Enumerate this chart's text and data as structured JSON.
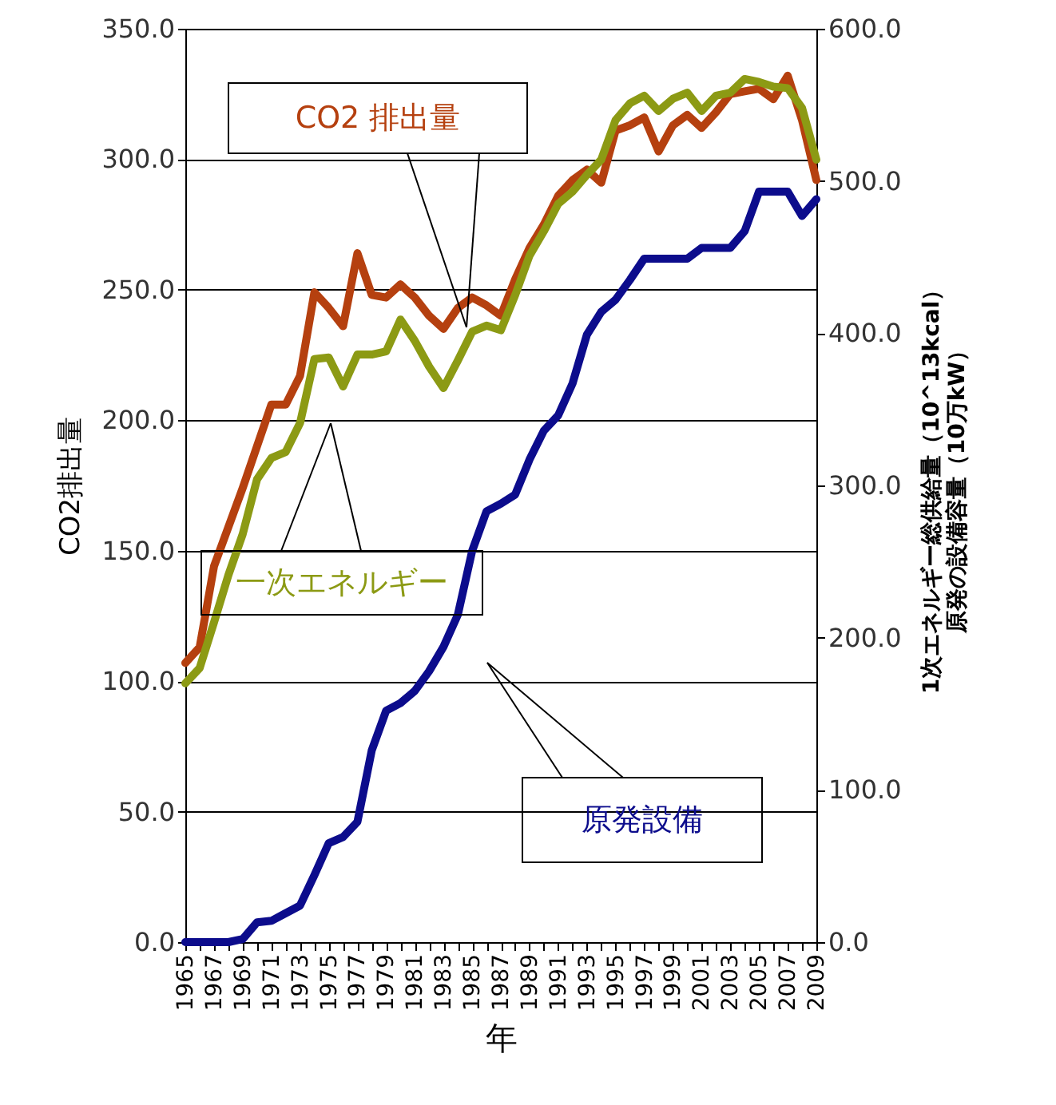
{
  "chart_data": {
    "type": "line",
    "xlabel": "年",
    "ylabel": "CO2排出量",
    "y2label": [
      "1次エネルギー総供給量（10^13kcal）",
      "原発の設備容量（10万kW）"
    ],
    "x": [
      1965,
      1966,
      1967,
      1968,
      1969,
      1970,
      1971,
      1972,
      1973,
      1974,
      1975,
      1976,
      1977,
      1978,
      1979,
      1980,
      1981,
      1982,
      1983,
      1984,
      1985,
      1986,
      1987,
      1988,
      1989,
      1990,
      1991,
      1992,
      1993,
      1994,
      1995,
      1996,
      1997,
      1998,
      1999,
      2000,
      2001,
      2002,
      2003,
      2004,
      2005,
      2006,
      2007,
      2008,
      2009
    ],
    "series": [
      {
        "name": "CO2 排出量",
        "color": "#b5400f",
        "values": [
          107,
          113,
          144,
          159,
          174,
          190,
          206,
          206,
          217,
          249,
          243,
          236,
          264,
          248,
          247,
          252,
          247,
          240,
          235,
          243,
          247,
          244,
          240,
          254,
          266,
          275,
          286,
          292,
          296,
          291,
          311,
          313,
          316,
          303,
          313,
          317,
          312,
          318,
          325,
          326,
          327,
          323,
          332,
          315,
          292
        ]
      },
      {
        "name": "一次エネルギー",
        "color": "#8c9a14",
        "axis": "y2",
        "values": [
          170,
          180,
          210,
          241,
          268,
          304,
          318,
          322,
          341,
          383,
          384,
          365,
          386,
          386,
          388,
          409,
          395,
          378,
          364,
          382,
          401,
          405,
          402,
          425,
          451,
          467,
          485,
          493,
          504,
          514,
          540,
          551,
          556,
          546,
          554,
          558,
          546,
          556,
          558,
          567,
          565,
          562,
          561,
          548,
          514
        ]
      },
      {
        "name": "原発設備",
        "color": "#0c0c8c",
        "axis": "y2",
        "values": [
          0,
          0,
          0,
          0,
          2,
          13,
          14,
          19,
          24,
          44,
          65,
          69,
          79,
          126,
          152,
          157,
          165,
          178,
          194,
          215,
          257,
          283,
          288,
          294,
          317,
          336,
          346,
          367,
          399,
          414,
          422,
          435,
          449,
          449,
          449,
          449,
          456,
          456,
          456,
          467,
          493,
          493,
          493,
          477,
          488
        ]
      }
    ],
    "xlim": [
      1965,
      2009
    ],
    "xticks": [
      1965,
      {
        "value": 1966,
        "label": null
      },
      1967,
      {
        "value": 1968,
        "label": null
      },
      1969,
      {
        "value": 1970,
        "label": null
      },
      1971,
      {
        "value": 1972,
        "label": null
      },
      1973,
      {
        "value": 1974,
        "label": null
      },
      1975,
      {
        "value": 1976,
        "label": null
      },
      1977,
      {
        "value": 1978,
        "label": null
      },
      1979,
      {
        "value": 1980,
        "label": null
      },
      1981,
      {
        "value": 1982,
        "label": null
      },
      1983,
      {
        "value": 1984,
        "label": null
      },
      1985,
      {
        "value": 1986,
        "label": null
      },
      1987,
      {
        "value": 1988,
        "label": null
      },
      1989,
      {
        "value": 1990,
        "label": null
      },
      1991,
      {
        "value": 1992,
        "label": null
      },
      1993,
      {
        "value": 1994,
        "label": null
      },
      1995,
      {
        "value": 1996,
        "label": null
      },
      1997,
      {
        "value": 1998,
        "label": null
      },
      1999,
      {
        "value": 2000,
        "label": null
      },
      2001,
      {
        "value": 2002,
        "label": null
      },
      2003,
      {
        "value": 2004,
        "label": null
      },
      2005,
      {
        "value": 2006,
        "label": null
      },
      2007,
      {
        "value": 2008,
        "label": null
      },
      2009
    ],
    "ylim": [
      0,
      350
    ],
    "yticks": [
      {
        "value": 0,
        "label": "0.0"
      },
      {
        "value": 50,
        "label": "50.0"
      },
      {
        "value": 100,
        "label": "100.0"
      },
      {
        "value": 150,
        "label": "150.0"
      },
      {
        "value": 200,
        "label": "200.0"
      },
      {
        "value": 250,
        "label": "250.0"
      },
      {
        "value": 300,
        "label": "300.0"
      },
      {
        "value": 350,
        "label": "350.0"
      }
    ],
    "y2lim": [
      0,
      600
    ],
    "y2ticks": [
      {
        "value": 0,
        "label": "0.0"
      },
      {
        "value": 100,
        "label": "100.0"
      },
      {
        "value": 200,
        "label": "200.0"
      },
      {
        "value": 300,
        "label": "300.0"
      },
      {
        "value": 400,
        "label": "400.0"
      },
      {
        "value": 500,
        "label": "500.0"
      },
      {
        "value": 600,
        "label": "600.0"
      }
    ],
    "grid": "y",
    "marker": "none",
    "line_style": "solid"
  }
}
